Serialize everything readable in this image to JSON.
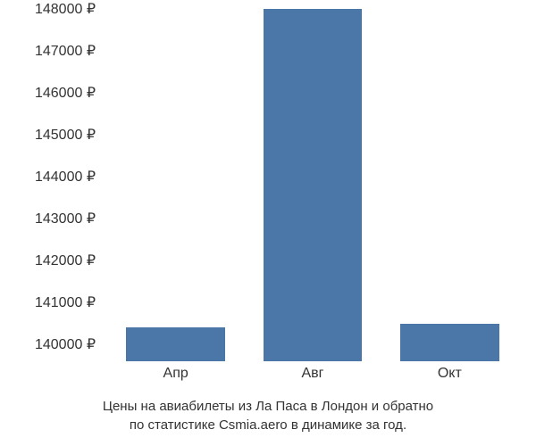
{
  "chart": {
    "type": "bar",
    "background_color": "#ffffff",
    "bar_color": "#4a77a8",
    "text_color": "#333333",
    "tick_fontsize": 16,
    "caption_fontsize": 15,
    "y_axis": {
      "min": 139600,
      "max": 148000,
      "tick_step": 1000,
      "ticks": [
        {
          "value": 140000,
          "label": "140000 ₽"
        },
        {
          "value": 141000,
          "label": "141000 ₽"
        },
        {
          "value": 142000,
          "label": "142000 ₽"
        },
        {
          "value": 143000,
          "label": "143000 ₽"
        },
        {
          "value": 144000,
          "label": "144000 ₽"
        },
        {
          "value": 145000,
          "label": "145000 ₽"
        },
        {
          "value": 146000,
          "label": "146000 ₽"
        },
        {
          "value": 147000,
          "label": "147000 ₽"
        },
        {
          "value": 148000,
          "label": "148000 ₽"
        }
      ]
    },
    "categories": [
      "Апр",
      "Авг",
      "Окт"
    ],
    "values": [
      140400,
      148000,
      140500
    ],
    "bar_width_ratio": 0.72,
    "caption_line1": "Цены на авиабилеты из Ла Паса в Лондон и обратно",
    "caption_line2": "по статистике Csmia.aero в динамике за год."
  }
}
